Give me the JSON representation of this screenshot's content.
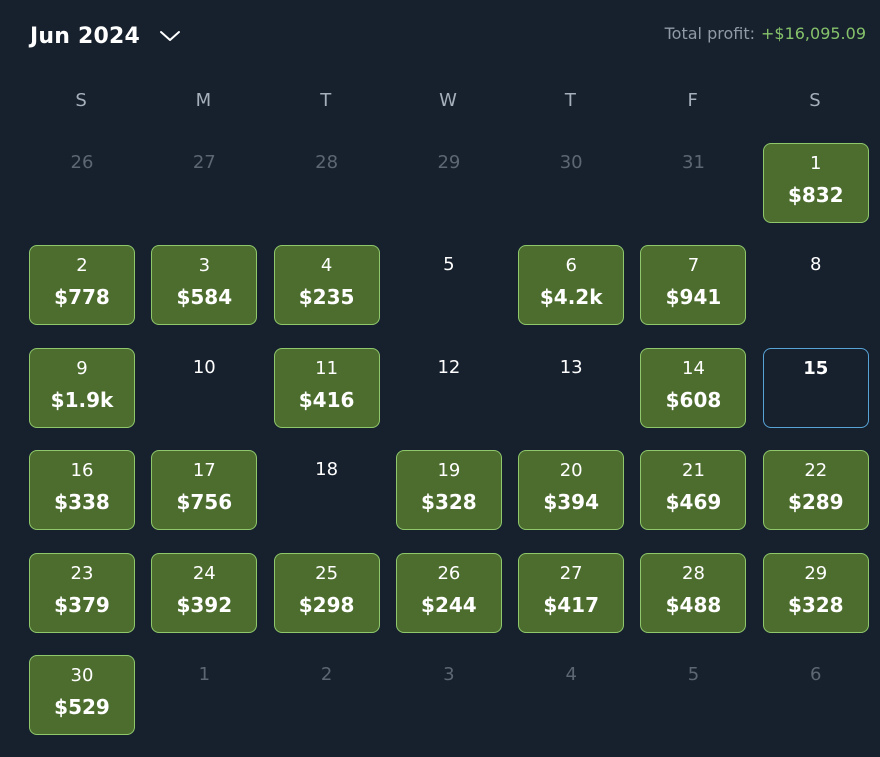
{
  "header": {
    "month_label": "Jun 2024",
    "chevron_icon": "chevron-down-icon",
    "total_label": "Total profit:",
    "total_value": "+$16,095.09"
  },
  "colors": {
    "background": "#17212e",
    "profit_fill": "#4d6d2f",
    "profit_border": "#8fc86b",
    "profit_text": "#86c26a",
    "today_border": "#57a3d6",
    "muted_text": "#5c6773"
  },
  "weekdays": [
    "S",
    "M",
    "T",
    "W",
    "T",
    "F",
    "S"
  ],
  "days": [
    {
      "num": "26",
      "profit": "",
      "outside": true
    },
    {
      "num": "27",
      "profit": "",
      "outside": true
    },
    {
      "num": "28",
      "profit": "",
      "outside": true
    },
    {
      "num": "29",
      "profit": "",
      "outside": true
    },
    {
      "num": "30",
      "profit": "",
      "outside": true
    },
    {
      "num": "31",
      "profit": "",
      "outside": true
    },
    {
      "num": "1",
      "profit": "$832"
    },
    {
      "num": "2",
      "profit": "$778"
    },
    {
      "num": "3",
      "profit": "$584"
    },
    {
      "num": "4",
      "profit": "$235"
    },
    {
      "num": "5",
      "profit": ""
    },
    {
      "num": "6",
      "profit": "$4.2k"
    },
    {
      "num": "7",
      "profit": "$941"
    },
    {
      "num": "8",
      "profit": ""
    },
    {
      "num": "9",
      "profit": "$1.9k"
    },
    {
      "num": "10",
      "profit": ""
    },
    {
      "num": "11",
      "profit": "$416"
    },
    {
      "num": "12",
      "profit": ""
    },
    {
      "num": "13",
      "profit": ""
    },
    {
      "num": "14",
      "profit": "$608"
    },
    {
      "num": "15",
      "profit": "",
      "today": true
    },
    {
      "num": "16",
      "profit": "$338"
    },
    {
      "num": "17",
      "profit": "$756"
    },
    {
      "num": "18",
      "profit": ""
    },
    {
      "num": "19",
      "profit": "$328"
    },
    {
      "num": "20",
      "profit": "$394"
    },
    {
      "num": "21",
      "profit": "$469"
    },
    {
      "num": "22",
      "profit": "$289"
    },
    {
      "num": "23",
      "profit": "$379"
    },
    {
      "num": "24",
      "profit": "$392"
    },
    {
      "num": "25",
      "profit": "$298"
    },
    {
      "num": "26",
      "profit": "$244"
    },
    {
      "num": "27",
      "profit": "$417"
    },
    {
      "num": "28",
      "profit": "$488"
    },
    {
      "num": "29",
      "profit": "$328"
    },
    {
      "num": "30",
      "profit": "$529"
    },
    {
      "num": "1",
      "profit": "",
      "outside": true
    },
    {
      "num": "2",
      "profit": "",
      "outside": true
    },
    {
      "num": "3",
      "profit": "",
      "outside": true
    },
    {
      "num": "4",
      "profit": "",
      "outside": true
    },
    {
      "num": "5",
      "profit": "",
      "outside": true
    },
    {
      "num": "6",
      "profit": "",
      "outside": true
    }
  ]
}
